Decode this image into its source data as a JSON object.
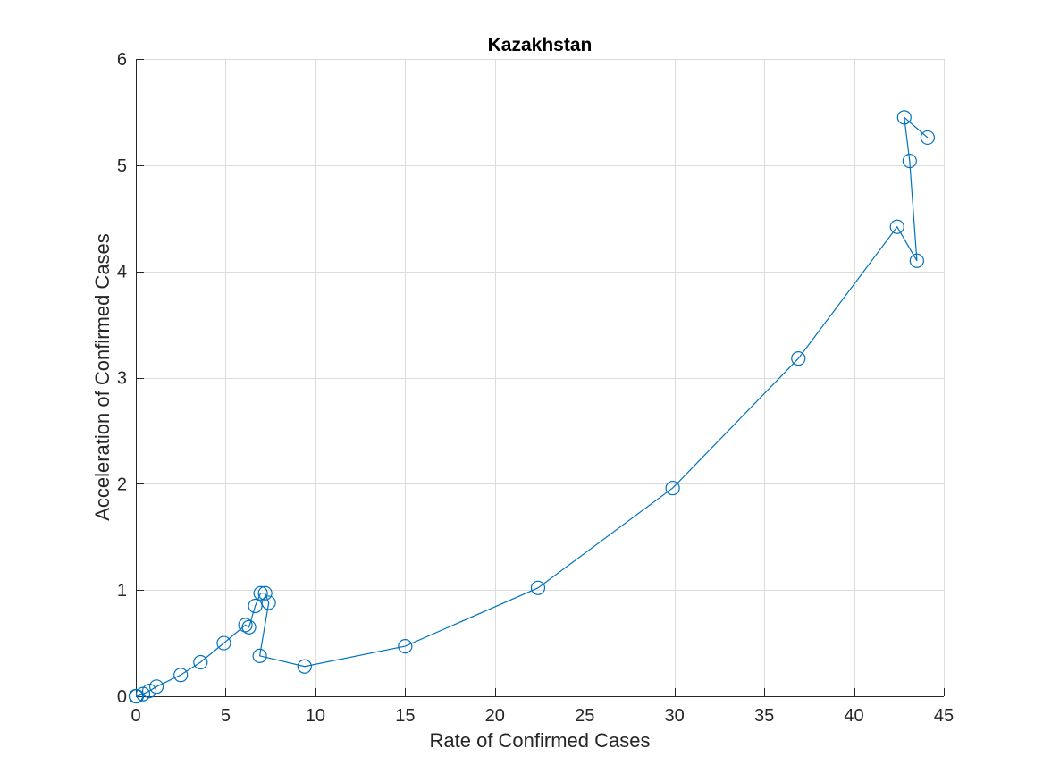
{
  "chart_data": {
    "type": "line",
    "title": "Kazakhstan",
    "xlabel": "Rate of Confirmed Cases",
    "ylabel": "Acceleration of Confirmed Cases",
    "xlim": [
      0,
      45
    ],
    "ylim": [
      0,
      6
    ],
    "x_ticks": [
      0,
      5,
      10,
      15,
      20,
      25,
      30,
      35,
      40,
      45
    ],
    "y_ticks": [
      0,
      1,
      2,
      3,
      4,
      5,
      6
    ],
    "x_tick_labels": [
      "0",
      "5",
      "10",
      "15",
      "20",
      "25",
      "30",
      "35",
      "40",
      "45"
    ],
    "y_tick_labels": [
      "0",
      "1",
      "2",
      "3",
      "4",
      "5",
      "6"
    ],
    "grid": true,
    "marker": "circle",
    "series": [
      {
        "color": "#0072bd",
        "x": [
          0.0,
          0.05,
          0.4,
          0.75,
          1.15,
          2.5,
          3.6,
          4.9,
          6.1,
          6.3,
          6.65,
          6.95,
          7.2,
          7.4,
          6.9,
          9.4,
          15.0,
          22.4,
          29.9,
          36.9,
          42.4,
          43.5,
          43.1,
          42.8,
          44.1
        ],
        "y": [
          0.0,
          0.0,
          0.02,
          0.05,
          0.09,
          0.2,
          0.32,
          0.5,
          0.67,
          0.65,
          0.85,
          0.97,
          0.97,
          0.88,
          0.38,
          0.28,
          0.47,
          1.02,
          1.96,
          3.18,
          4.42,
          4.1,
          5.04,
          5.45,
          5.26
        ]
      }
    ]
  }
}
